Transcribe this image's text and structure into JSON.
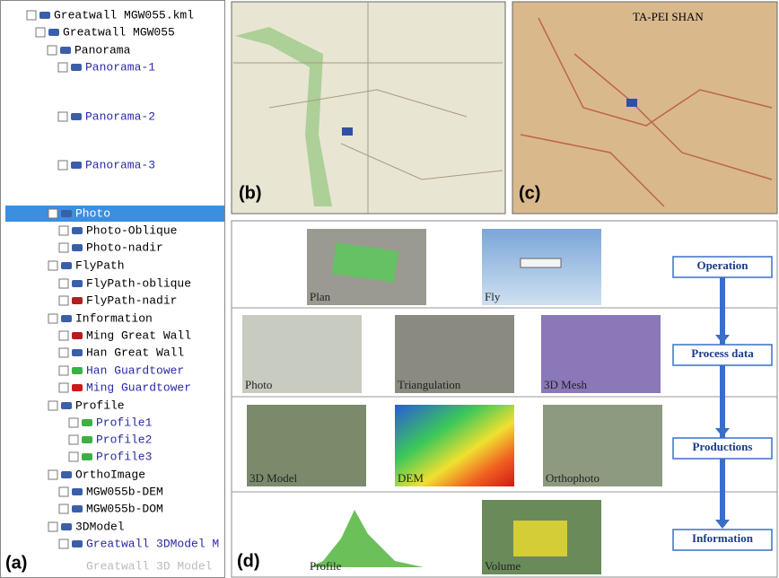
{
  "tree": {
    "items": [
      "Greatwall MGW055.kml",
      "Greatwall MGW055",
      "Panorama",
      "Panorama-1",
      "Panorama-2",
      "Panorama-3",
      "Photo",
      "Photo-Oblique",
      "Photo-nadir",
      "FlyPath",
      "FlyPath-oblique",
      "FlyPath-nadir",
      "Information",
      "Ming Great Wall",
      "Han Great Wall",
      "Han  Guardtower",
      "Ming  Guardtower",
      "Profile",
      "Profile1",
      "Profile2",
      "Profile3",
      "OrthoImage",
      "MGW055b-DEM",
      "MGW055b-DOM",
      "3DModel",
      "Greatwall  3DModel  M",
      "Greatwall 3D Model"
    ],
    "label": "(a)"
  },
  "maps": [
    {
      "label": "(b)"
    },
    {
      "label": "(c)",
      "place_name": "TA-PEI SHAN"
    }
  ],
  "workflow": {
    "label": "(d)",
    "rows": [
      {
        "stage": "Operation",
        "images": [
          "Plan",
          "Fly"
        ]
      },
      {
        "stage": "Process data",
        "images": [
          "Photo",
          "Triangulation",
          "3D Mesh"
        ]
      },
      {
        "stage": "Productions",
        "images": [
          "3D Model",
          "DEM",
          "Orthophoto"
        ]
      },
      {
        "stage": "Information",
        "images": [
          "Profile",
          "Volume"
        ]
      }
    ]
  }
}
